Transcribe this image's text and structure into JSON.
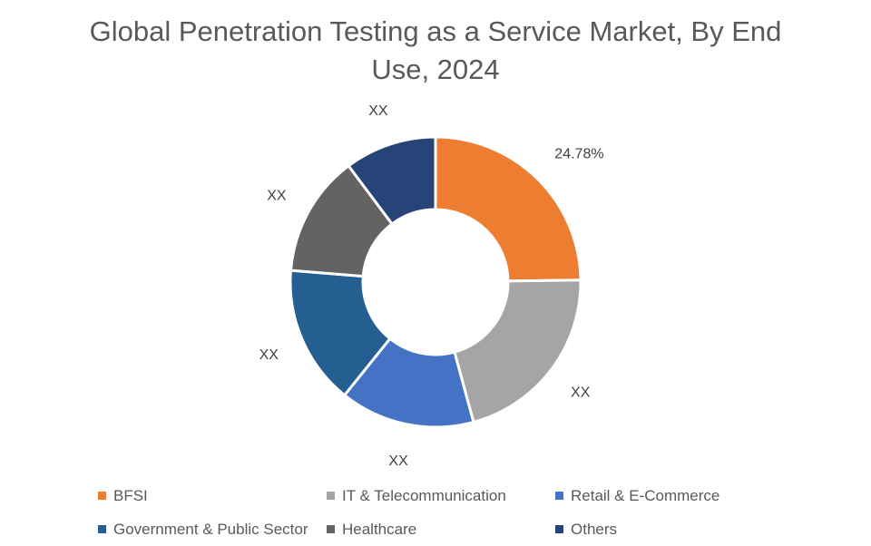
{
  "chart_data": {
    "type": "pie",
    "variant": "donut",
    "title": "Global Penetration Testing as a Service Market, By End Use, 2024",
    "categories": [
      "BFSI",
      "IT & Telecommunication",
      "Retail & E-Commerce",
      "Government & Public Sector",
      "Healthcare",
      "Others"
    ],
    "values": [
      24.78,
      21.0,
      15.0,
      15.5,
      13.5,
      10.22
    ],
    "data_labels": [
      "24.78%",
      "XX",
      "XX",
      "XX",
      "XX",
      "XX"
    ],
    "colors": [
      "#ED7D31",
      "#A5A5A5",
      "#4472C4",
      "#255E91",
      "#636363",
      "#264478"
    ],
    "legend_position": "bottom"
  }
}
